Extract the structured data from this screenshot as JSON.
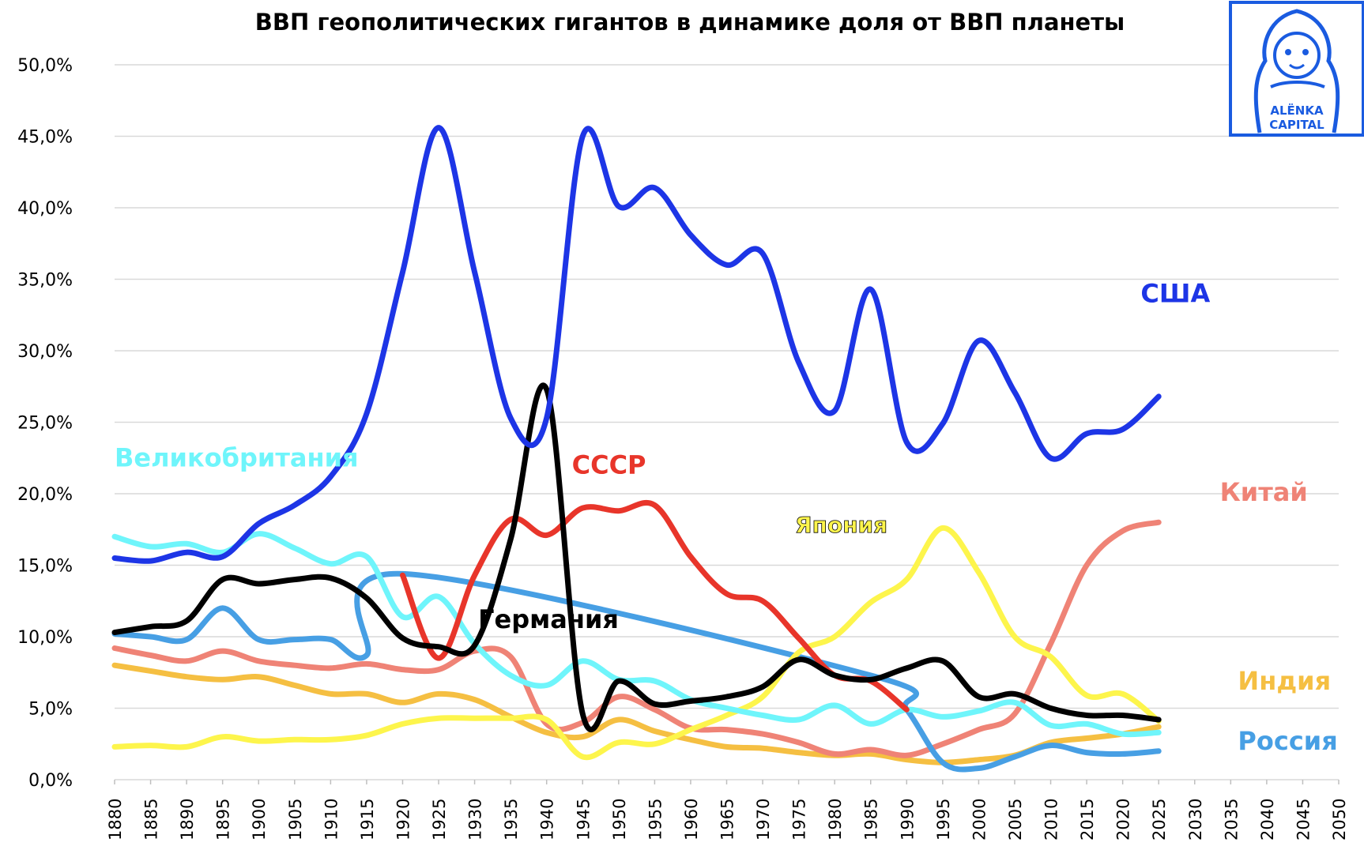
{
  "chart_data": {
    "type": "line",
    "title": "ВВП геополитических гигантов в динамике доля от ВВП планеты",
    "ylim": [
      0,
      50
    ],
    "xlim": [
      1880,
      2050
    ],
    "y_ticks": [
      "0,0%",
      "5,0%",
      "10,0%",
      "15,0%",
      "20,0%",
      "25,0%",
      "30,0%",
      "35,0%",
      "40,0%",
      "45,0%",
      "50,0%"
    ],
    "x_ticks": [
      "1880",
      "1885",
      "1890",
      "1895",
      "1900",
      "1905",
      "1910",
      "1915",
      "1920",
      "1925",
      "1930",
      "1935",
      "1940",
      "1945",
      "1950",
      "1955",
      "1960",
      "1965",
      "1970",
      "1975",
      "1980",
      "1985",
      "1990",
      "1995",
      "2000",
      "2005",
      "2010",
      "2015",
      "2020",
      "2025",
      "2030",
      "2035",
      "2040",
      "2045",
      "2050"
    ],
    "grid": true,
    "series": [
      {
        "name": "Индия",
        "color": "#f5bf42",
        "x": [
          1880,
          1885,
          1890,
          1895,
          1900,
          1905,
          1910,
          1915,
          1920,
          1925,
          1930,
          1935,
          1940,
          1945,
          1950,
          1955,
          1960,
          1965,
          1970,
          1975,
          1980,
          1985,
          1990,
          1995,
          2000,
          2005,
          2010,
          2015,
          2020,
          2025
        ],
        "y": [
          8.0,
          7.6,
          7.2,
          7.0,
          7.2,
          6.6,
          6.0,
          6.0,
          5.4,
          6.0,
          5.6,
          4.4,
          3.3,
          3.0,
          4.2,
          3.4,
          2.8,
          2.3,
          2.2,
          1.9,
          1.7,
          1.8,
          1.4,
          1.2,
          1.4,
          1.7,
          2.6,
          2.9,
          3.2,
          3.7
        ]
      },
      {
        "name": "Китай",
        "color": "#ef8376",
        "x": [
          1880,
          1885,
          1890,
          1895,
          1900,
          1905,
          1910,
          1915,
          1920,
          1925,
          1930,
          1935,
          1940,
          1945,
          1950,
          1955,
          1960,
          1965,
          1970,
          1975,
          1980,
          1985,
          1990,
          1995,
          2000,
          2005,
          2010,
          2015,
          2020,
          2025
        ],
        "y": [
          9.2,
          8.7,
          8.3,
          9.0,
          8.3,
          8.0,
          7.8,
          8.1,
          7.7,
          7.7,
          9.0,
          8.6,
          3.9,
          4.0,
          5.8,
          4.9,
          3.6,
          3.5,
          3.2,
          2.6,
          1.8,
          2.1,
          1.7,
          2.5,
          3.5,
          4.6,
          9.5,
          15.0,
          17.4,
          18.0
        ]
      },
      {
        "name": "Россия",
        "color": "#479fe4",
        "x": [
          1880,
          1885,
          1890,
          1895,
          1900,
          1905,
          1910,
          1915,
          1920,
          1985,
          1990,
          1995,
          2000,
          2005,
          2010,
          2015,
          2020,
          2025
        ],
        "y": [
          10.2,
          10.0,
          9.8,
          12.0,
          9.8,
          9.8,
          9.8,
          8.7,
          14.4,
          7.3,
          4.9,
          1.2,
          0.8,
          1.6,
          2.4,
          1.9,
          1.8,
          2.0
        ]
      },
      {
        "name": "Япония",
        "color": "#fdf54c",
        "x": [
          1880,
          1885,
          1890,
          1895,
          1900,
          1905,
          1910,
          1915,
          1920,
          1925,
          1930,
          1935,
          1940,
          1945,
          1950,
          1955,
          1960,
          1965,
          1970,
          1975,
          1980,
          1985,
          1990,
          1995,
          2000,
          2005,
          2010,
          2015,
          2020,
          2025
        ],
        "y": [
          2.3,
          2.4,
          2.3,
          3.0,
          2.7,
          2.8,
          2.8,
          3.1,
          3.9,
          4.3,
          4.3,
          4.3,
          4.2,
          1.6,
          2.6,
          2.5,
          3.5,
          4.5,
          5.8,
          8.9,
          10.0,
          12.4,
          14.0,
          17.6,
          14.5,
          10.0,
          8.6,
          5.9,
          6.0,
          4.1
        ]
      },
      {
        "name": "Великобритания",
        "color": "#6ff5fb",
        "x": [
          1880,
          1885,
          1890,
          1895,
          1900,
          1905,
          1910,
          1915,
          1920,
          1925,
          1930,
          1935,
          1940,
          1945,
          1950,
          1955,
          1960,
          1965,
          1970,
          1975,
          1980,
          1985,
          1990,
          1995,
          2000,
          2005,
          2010,
          2015,
          2020,
          2025
        ],
        "y": [
          17.0,
          16.3,
          16.5,
          15.9,
          17.2,
          16.2,
          15.1,
          15.6,
          11.4,
          12.8,
          9.5,
          7.3,
          6.6,
          8.3,
          7.0,
          6.9,
          5.6,
          5.0,
          4.5,
          4.2,
          5.2,
          3.9,
          4.9,
          4.4,
          4.8,
          5.4,
          3.8,
          3.9,
          3.2,
          3.3
        ]
      },
      {
        "name": "СССР",
        "color": "#e8352a",
        "x": [
          1920,
          1925,
          1930,
          1935,
          1940,
          1945,
          1950,
          1955,
          1960,
          1965,
          1970,
          1975,
          1980,
          1985,
          1990
        ],
        "y": [
          14.3,
          8.5,
          14.3,
          18.2,
          17.1,
          19.0,
          18.8,
          19.2,
          15.6,
          13.0,
          12.5,
          9.9,
          7.3,
          6.9,
          4.9
        ]
      },
      {
        "name": "Германия",
        "color": "#000000",
        "x": [
          1880,
          1885,
          1890,
          1895,
          1900,
          1905,
          1910,
          1915,
          1920,
          1925,
          1930,
          1935,
          1940,
          1945,
          1950,
          1955,
          1960,
          1965,
          1970,
          1975,
          1980,
          1985,
          1990,
          1995,
          2000,
          2005,
          2010,
          2015,
          2020,
          2025
        ],
        "y": [
          10.3,
          10.7,
          11.1,
          14.0,
          13.7,
          14.0,
          14.1,
          12.7,
          9.9,
          9.3,
          9.4,
          16.8,
          27.3,
          4.6,
          6.9,
          5.3,
          5.5,
          5.8,
          6.5,
          8.4,
          7.3,
          7.0,
          7.8,
          8.3,
          5.8,
          6.0,
          5.0,
          4.5,
          4.5,
          4.2
        ]
      },
      {
        "name": "США",
        "color": "#1d35e6",
        "x": [
          1880,
          1885,
          1890,
          1895,
          1900,
          1905,
          1910,
          1915,
          1920,
          1925,
          1930,
          1935,
          1940,
          1945,
          1950,
          1955,
          1960,
          1965,
          1970,
          1975,
          1980,
          1985,
          1990,
          1995,
          2000,
          2005,
          2010,
          2015,
          2020,
          2025
        ],
        "y": [
          15.5,
          15.3,
          15.9,
          15.6,
          17.9,
          19.2,
          21.2,
          25.6,
          35.5,
          45.6,
          35.5,
          25.3,
          25.3,
          45.0,
          40.1,
          41.4,
          38.1,
          36.0,
          36.8,
          29.2,
          25.8,
          34.3,
          23.6,
          24.9,
          30.7,
          27.1,
          22.5,
          24.2,
          24.5,
          26.8
        ]
      }
    ],
    "labels": [
      {
        "text": "США",
        "color": "#1d35e6",
        "x": 2022.5,
        "y": 33.4
      },
      {
        "text": "Великобритания",
        "color": "#6ff5fb",
        "x": 1880,
        "y": 21.9
      },
      {
        "text": "СССР",
        "color": "#e8352a",
        "x": 1943.5,
        "y": 21.4
      },
      {
        "text": "Китай",
        "color": "#ef8376",
        "x": 2033.5,
        "y": 19.5
      },
      {
        "text": "Япония",
        "color": "#fdf54c",
        "x": 1974.5,
        "y": 17.3
      },
      {
        "text": "Германия",
        "color": "#000000",
        "x": 1930.5,
        "y": 10.6
      },
      {
        "text": "Индия",
        "color": "#f5bf42",
        "x": 2036.0,
        "y": 6.3
      },
      {
        "text": "Россия",
        "color": "#479fe4",
        "x": 2036.0,
        "y": 2.1
      }
    ]
  },
  "logo": {
    "line1": "ALЁNKA",
    "line2": "CAPITAL",
    "color": "#1a5be0"
  }
}
